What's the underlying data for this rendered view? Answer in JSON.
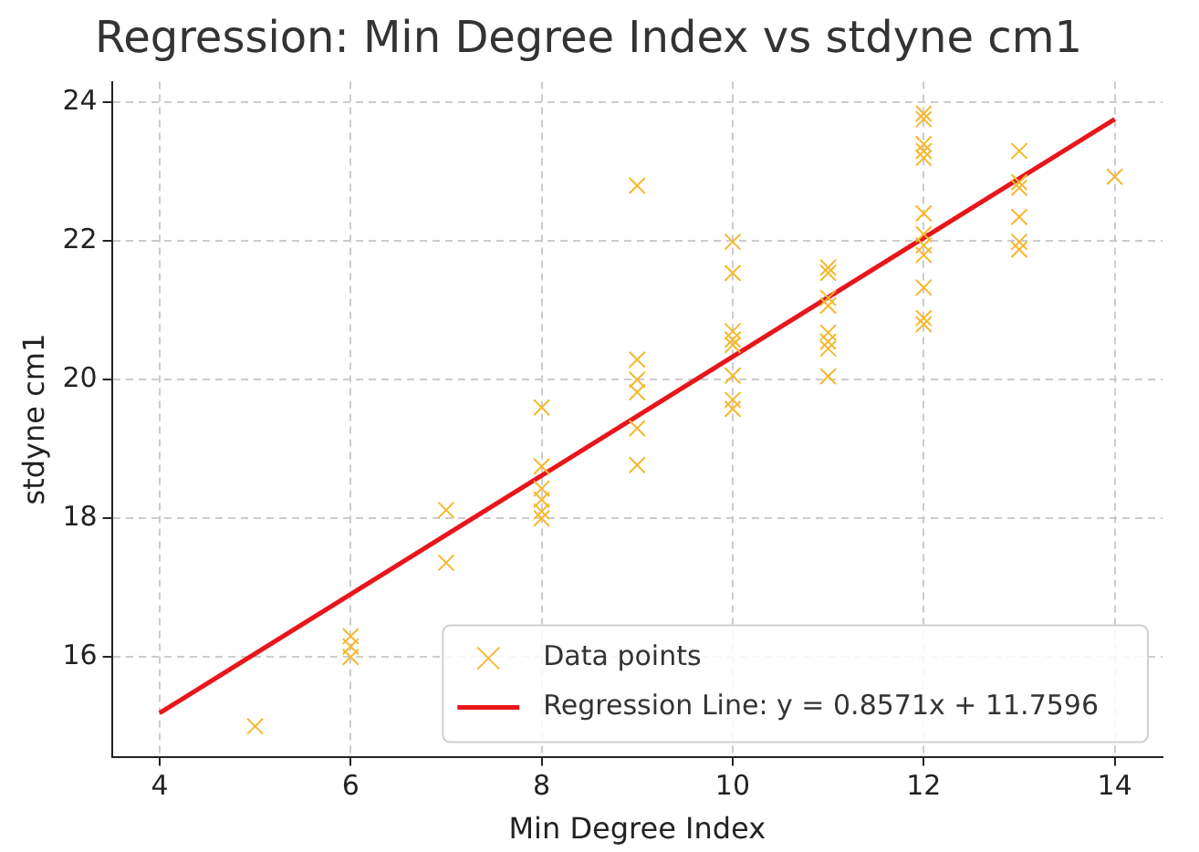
{
  "chart_data": {
    "type": "scatter",
    "title": "Regression: Min Degree Index vs stdyne cm1",
    "xlabel": "Min Degree Index",
    "ylabel": "stdyne cm1",
    "xlim": [
      3.5,
      14.5
    ],
    "ylim": [
      14.56,
      24.3
    ],
    "xticks": [
      4,
      6,
      8,
      10,
      12,
      14
    ],
    "yticks": [
      16,
      18,
      20,
      22,
      24
    ],
    "grid": true,
    "legend": "bottom right",
    "series": [
      {
        "name": "Data points",
        "marker": "cross",
        "color": "#f5b82e",
        "x": [
          5,
          6,
          6,
          6,
          7,
          7,
          8,
          8,
          8,
          8,
          8,
          8,
          9,
          9,
          9,
          9,
          9,
          9,
          10,
          10,
          10,
          10,
          10,
          10,
          10,
          10,
          11,
          11,
          11,
          11,
          11,
          11,
          11,
          11,
          12,
          12,
          12,
          12,
          12,
          12,
          12,
          12,
          12,
          12,
          12,
          12,
          13,
          13,
          13,
          13,
          13,
          13,
          14
        ],
        "values": [
          15.0,
          16.3,
          16.15,
          16.0,
          18.12,
          17.36,
          19.6,
          18.75,
          18.43,
          18.27,
          18.1,
          18.0,
          22.8,
          20.29,
          20.0,
          19.82,
          19.3,
          18.77,
          21.99,
          21.54,
          20.7,
          20.58,
          20.5,
          20.06,
          19.71,
          19.58,
          21.62,
          21.54,
          21.18,
          21.07,
          20.68,
          20.55,
          20.45,
          20.05,
          23.84,
          23.76,
          23.4,
          23.3,
          23.2,
          22.4,
          22.1,
          21.94,
          21.8,
          21.33,
          20.89,
          20.8,
          23.3,
          22.85,
          22.77,
          22.35,
          21.99,
          21.88,
          22.93
        ]
      },
      {
        "name": "Regression Line: y = 0.8571x + 11.7596",
        "type": "line",
        "marker": "none",
        "line_style": "solid",
        "color": "#e8161b",
        "x": [
          4,
          14
        ],
        "values": [
          15.19,
          23.76
        ]
      }
    ]
  }
}
